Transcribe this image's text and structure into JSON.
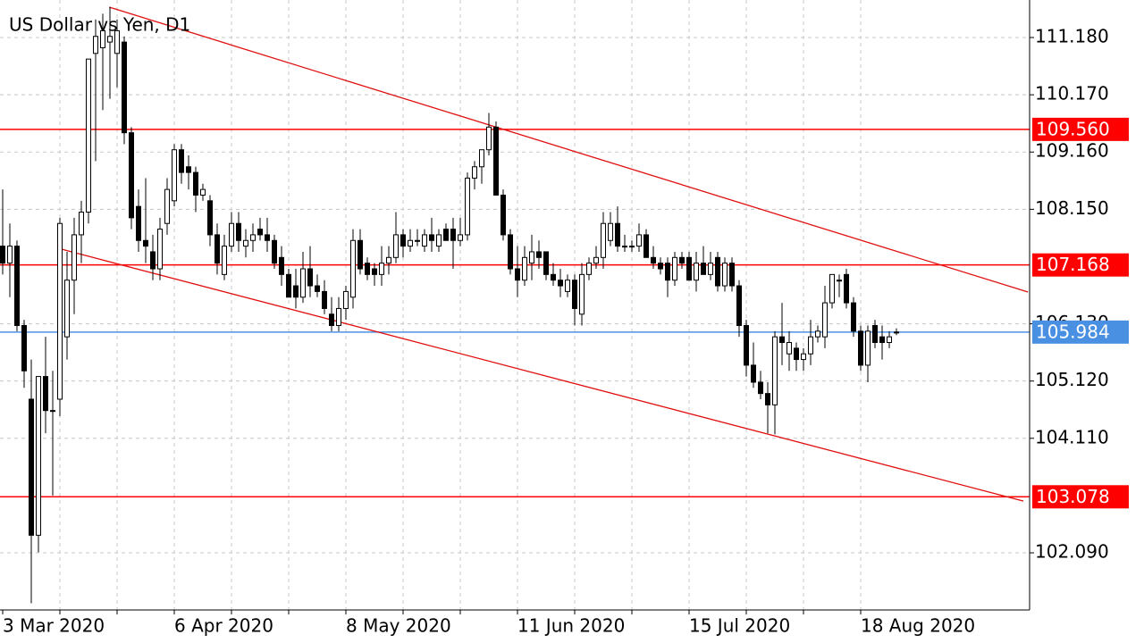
{
  "chart_data": {
    "type": "candlestick",
    "title": "US Dollar vs Yen, D1",
    "categories": [
      "3 Mar 2020",
      null,
      null,
      null,
      null,
      null,
      null,
      null,
      null,
      null,
      null,
      null,
      null,
      null,
      null,
      null,
      null,
      null,
      null,
      null,
      null,
      null,
      null,
      null,
      "6 Apr 2020",
      null,
      null,
      null,
      null,
      null,
      null,
      null,
      null,
      null,
      null,
      null,
      null,
      null,
      null,
      null,
      null,
      null,
      null,
      null,
      null,
      null,
      null,
      null,
      "8 May 2020",
      null,
      null,
      null,
      null,
      null,
      null,
      null,
      null,
      null,
      null,
      null,
      null,
      null,
      null,
      null,
      null,
      null,
      null,
      null,
      null,
      null,
      null,
      null,
      "11 Jun 2020",
      null,
      null,
      null,
      null,
      null,
      null,
      null,
      null,
      null,
      null,
      null,
      null,
      null,
      null,
      null,
      null,
      null,
      null,
      null,
      null,
      null,
      null,
      null,
      "15 Jul 2020",
      null,
      null,
      null,
      null,
      null,
      null,
      null,
      null,
      null,
      null,
      null,
      null,
      null,
      null,
      null,
      null,
      null,
      null,
      null,
      null,
      null,
      null,
      null,
      "18 Aug 2020",
      null,
      null,
      null,
      null,
      null
    ],
    "open": [
      107.5,
      107.2,
      107.5,
      106.1,
      104.8,
      102.4,
      105.2,
      104.6,
      104.8,
      105.9,
      106.9,
      107.7,
      108.1,
      110.9,
      111.0,
      111.1,
      110.9,
      111.1,
      109.5,
      108.2,
      107.6,
      107.4,
      107.1,
      107.9,
      108.3,
      109.2,
      108.9,
      108.8,
      108.4,
      108.3,
      107.7,
      107.0,
      107.5,
      107.9,
      107.5,
      107.6,
      107.8,
      107.7,
      107.6,
      107.3,
      107.0,
      106.8,
      106.6,
      107.1,
      106.8,
      106.7,
      106.3,
      106.1,
      106.4,
      106.6,
      107.6,
      107.2,
      107.1,
      107.0,
      107.2,
      107.3,
      107.7,
      107.5,
      107.6,
      107.5,
      107.7,
      107.5,
      107.8,
      107.8,
      107.6,
      107.7,
      108.7,
      108.9,
      109.2,
      109.6,
      108.4,
      107.7,
      107.1,
      106.9,
      107.2,
      107.4,
      107.4,
      107.0,
      106.9,
      106.7,
      106.9,
      106.3,
      107.0,
      107.2,
      107.3,
      107.6,
      107.9,
      107.5,
      107.5,
      107.5,
      107.7,
      107.3,
      107.2,
      107.2,
      106.9,
      107.3,
      107.3,
      106.9,
      107.2,
      107.0,
      107.3,
      106.8,
      107.2,
      106.8,
      106.1,
      105.4,
      105.1,
      104.9,
      104.7,
      105.9,
      105.6,
      105.7,
      105.5,
      105.6,
      105.9,
      105.9,
      106.5,
      106.9,
      107.0,
      106.5,
      106.0,
      105.4,
      106.1,
      105.9,
      105.8,
      105.97
    ],
    "high": [
      108.5,
      107.9,
      107.6,
      106.2,
      105.5,
      105.2,
      105.9,
      105.3,
      108.0,
      107.4,
      108.0,
      108.3,
      110.8,
      111.5,
      111.6,
      111.72,
      111.5,
      111.2,
      109.6,
      108.5,
      108.7,
      107.7,
      108.0,
      108.7,
      109.3,
      109.3,
      109.1,
      108.9,
      108.6,
      108.4,
      107.9,
      107.7,
      108.1,
      108.1,
      107.8,
      107.9,
      108.0,
      108.0,
      107.7,
      107.5,
      107.1,
      107.1,
      107.4,
      107.5,
      107.0,
      106.9,
      106.6,
      106.6,
      106.8,
      107.8,
      107.8,
      107.3,
      107.2,
      107.5,
      107.5,
      108.1,
      107.8,
      107.8,
      107.8,
      107.8,
      108.0,
      107.8,
      107.9,
      108.0,
      108.0,
      108.8,
      109.0,
      109.2,
      109.85,
      109.7,
      108.5,
      107.8,
      107.5,
      107.5,
      107.7,
      107.6,
      107.4,
      107.2,
      107.1,
      107.0,
      107.0,
      107.2,
      107.3,
      107.5,
      108.1,
      108.1,
      108.2,
      107.7,
      107.6,
      107.9,
      107.8,
      107.5,
      107.3,
      107.3,
      107.4,
      107.4,
      107.4,
      107.4,
      107.5,
      107.4,
      107.4,
      107.3,
      107.3,
      106.9,
      106.2,
      105.8,
      105.3,
      105.1,
      106.0,
      106.5,
      106.0,
      105.8,
      105.7,
      106.2,
      106.1,
      106.8,
      107.0,
      107.0,
      107.1,
      106.6,
      106.1,
      106.1,
      106.2,
      106.1,
      106.0,
      106.05
    ],
    "low": [
      107.0,
      106.6,
      106.0,
      105.0,
      101.2,
      102.1,
      104.2,
      103.1,
      104.5,
      105.5,
      106.3,
      107.2,
      107.9,
      109.0,
      109.9,
      110.1,
      110.3,
      109.3,
      107.8,
      107.4,
      107.2,
      106.9,
      106.9,
      107.7,
      108.2,
      108.6,
      108.5,
      108.1,
      108.3,
      107.5,
      107.0,
      106.9,
      107.4,
      107.4,
      107.3,
      107.4,
      107.6,
      107.4,
      107.1,
      106.8,
      106.6,
      106.4,
      106.5,
      106.6,
      106.6,
      106.3,
      106.0,
      106.0,
      106.2,
      106.4,
      107.0,
      106.9,
      106.8,
      106.8,
      107.0,
      107.2,
      107.3,
      107.4,
      107.5,
      107.4,
      107.4,
      107.4,
      107.6,
      107.1,
      107.5,
      107.6,
      108.5,
      108.6,
      109.1,
      108.4,
      107.6,
      107.0,
      106.6,
      106.8,
      106.9,
      107.1,
      106.9,
      106.8,
      106.6,
      106.6,
      106.1,
      106.1,
      106.9,
      107.1,
      107.1,
      107.5,
      107.4,
      107.4,
      107.4,
      107.4,
      107.3,
      107.1,
      107.0,
      106.6,
      106.8,
      107.1,
      106.9,
      106.7,
      107.0,
      106.9,
      106.7,
      106.7,
      106.7,
      105.9,
      105.2,
      105.0,
      104.8,
      104.2,
      104.18,
      105.4,
      105.3,
      105.3,
      105.3,
      105.4,
      105.8,
      105.7,
      106.4,
      106.6,
      106.4,
      105.9,
      105.3,
      105.1,
      105.7,
      105.5,
      105.7,
      105.93
    ],
    "close": [
      107.2,
      107.5,
      106.1,
      105.3,
      102.4,
      105.2,
      104.6,
      104.6,
      107.9,
      106.9,
      107.7,
      108.1,
      110.8,
      111.2,
      111.3,
      111.2,
      111.3,
      109.5,
      108.0,
      107.6,
      107.5,
      107.1,
      107.8,
      108.5,
      109.2,
      108.8,
      108.8,
      108.4,
      108.5,
      107.7,
      107.2,
      107.5,
      107.9,
      107.6,
      107.6,
      107.7,
      107.7,
      107.6,
      107.2,
      107.0,
      106.6,
      106.6,
      107.1,
      106.8,
      106.7,
      106.4,
      106.1,
      106.4,
      106.7,
      107.6,
      107.1,
      107.0,
      107.0,
      107.2,
      107.3,
      107.7,
      107.5,
      107.6,
      107.6,
      107.7,
      107.6,
      107.7,
      107.6,
      107.6,
      107.7,
      108.7,
      108.9,
      109.2,
      109.6,
      108.4,
      107.7,
      107.1,
      106.9,
      107.3,
      107.4,
      107.3,
      107.0,
      106.9,
      106.8,
      106.9,
      106.4,
      107.0,
      107.2,
      107.3,
      107.9,
      107.9,
      107.5,
      107.5,
      107.5,
      107.7,
      107.3,
      107.2,
      107.1,
      106.9,
      107.3,
      107.2,
      106.9,
      107.2,
      107.0,
      107.2,
      106.8,
      107.2,
      106.8,
      106.1,
      105.4,
      105.1,
      104.9,
      104.7,
      105.9,
      105.8,
      105.8,
      105.5,
      105.6,
      105.9,
      106.0,
      106.5,
      107.0,
      106.9,
      106.5,
      106.0,
      105.4,
      106.0,
      105.8,
      105.8,
      105.9,
      105.984
    ],
    "ylim": [
      101.082,
      111.842
    ],
    "yticks": [
      {
        "value": 102.09,
        "label": "102.090"
      },
      {
        "value": 104.11,
        "label": "104.110"
      },
      {
        "value": 105.12,
        "label": "105.120"
      },
      {
        "value": 106.13,
        "label": "106.130"
      },
      {
        "value": 108.15,
        "label": "108.150"
      },
      {
        "value": 109.16,
        "label": "109.160"
      },
      {
        "value": 110.17,
        "label": "110.170"
      },
      {
        "value": 111.18,
        "label": "111.180"
      }
    ],
    "grid": true,
    "levels": [
      {
        "value": 109.56,
        "label": "109.560",
        "color": "#ff0000"
      },
      {
        "value": 107.168,
        "label": "107.168",
        "color": "#ff0000"
      },
      {
        "value": 103.078,
        "label": "103.078",
        "color": "#ff0000"
      },
      {
        "value": 105.984,
        "label": "105.984",
        "color": "#4a90e2"
      }
    ],
    "trendlines": [
      {
        "x": [
          14.9,
          143.4
        ],
        "y": [
          111.716,
          106.69
        ],
        "color": "#e01010"
      },
      {
        "x": [
          7.75,
          142.75
        ],
        "y": [
          107.462,
          103.003
        ],
        "color": "#e01010"
      }
    ]
  }
}
